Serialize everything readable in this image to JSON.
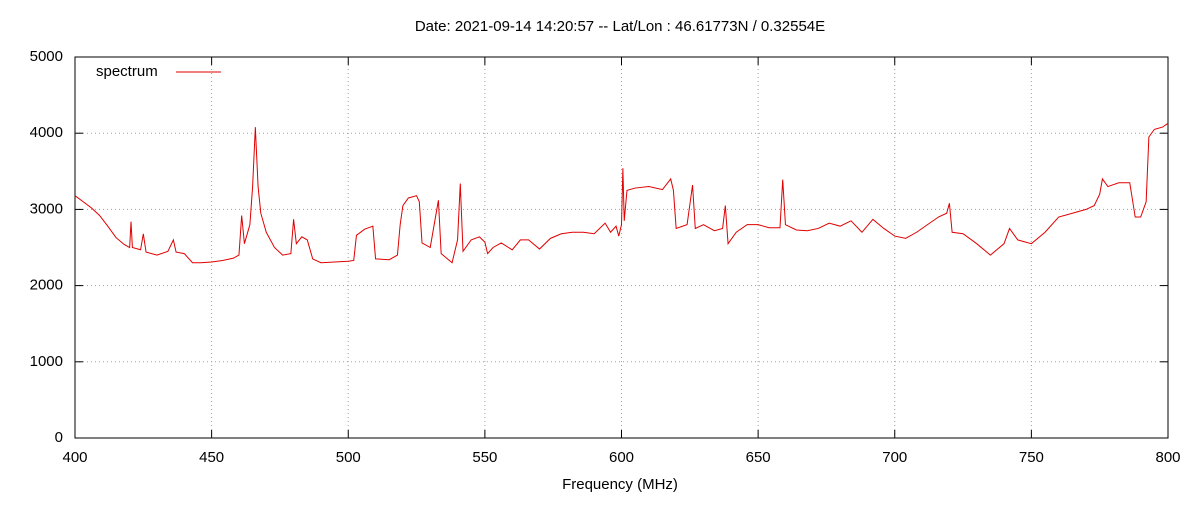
{
  "chart_data": {
    "type": "line",
    "title": "Date: 2021-09-14 14:20:57  --  Lat/Lon : 46.61773N / 0.32554E",
    "x_label": "Frequency (MHz)",
    "xlim": [
      400,
      800
    ],
    "xticks": [
      400,
      450,
      500,
      550,
      600,
      650,
      700,
      750,
      800
    ],
    "ylim": [
      0,
      5000
    ],
    "yticks": [
      0,
      1000,
      2000,
      3000,
      4000,
      5000
    ],
    "grid": true,
    "legend": "top-left",
    "series": [
      {
        "name": "spectrum",
        "color": "#e00000",
        "x": [
          400,
          403,
          406,
          409,
          412,
          415,
          418,
          420,
          420.5,
          421,
          424,
          425,
          426,
          430,
          434,
          436,
          437,
          440,
          443,
          446,
          450,
          454,
          458,
          460,
          461,
          462,
          464,
          465,
          466,
          467,
          468,
          470,
          473,
          476,
          479,
          480,
          481,
          483,
          485,
          487,
          490,
          495,
          500,
          502,
          503,
          506,
          509,
          510,
          515,
          518,
          519,
          520,
          522,
          525,
          526,
          527,
          530,
          533,
          534,
          538,
          540,
          541,
          542,
          545,
          548,
          550,
          551,
          553,
          556,
          560,
          563,
          566,
          570,
          574,
          578,
          582,
          586,
          590,
          594,
          596,
          598,
          599,
          600,
          600.5,
          601,
          602,
          605,
          610,
          615,
          618,
          619,
          620,
          624,
          626,
          627,
          630,
          634,
          637,
          638,
          639,
          642,
          646,
          650,
          654,
          658,
          659,
          660,
          664,
          668,
          672,
          676,
          680,
          684,
          688,
          692,
          696,
          700,
          704,
          708,
          712,
          716,
          719,
          720,
          721,
          725,
          730,
          735,
          740,
          742,
          745,
          750,
          755,
          760,
          765,
          770,
          773,
          775,
          776,
          778,
          782,
          786,
          788,
          790,
          792,
          793,
          795,
          798,
          800
        ],
        "values": [
          3180,
          3100,
          3020,
          2920,
          2780,
          2630,
          2540,
          2500,
          2840,
          2500,
          2470,
          2680,
          2440,
          2400,
          2450,
          2600,
          2440,
          2420,
          2300,
          2300,
          2310,
          2330,
          2360,
          2400,
          2920,
          2550,
          2800,
          3300,
          4080,
          3300,
          2950,
          2700,
          2500,
          2400,
          2420,
          2870,
          2550,
          2640,
          2600,
          2350,
          2300,
          2310,
          2320,
          2330,
          2660,
          2740,
          2780,
          2350,
          2340,
          2400,
          2800,
          3050,
          3150,
          3180,
          3100,
          2560,
          2500,
          3120,
          2420,
          2300,
          2600,
          3340,
          2450,
          2600,
          2640,
          2570,
          2420,
          2500,
          2560,
          2470,
          2600,
          2600,
          2480,
          2620,
          2680,
          2700,
          2700,
          2680,
          2820,
          2700,
          2780,
          2650,
          2800,
          3540,
          2850,
          3250,
          3280,
          3300,
          3260,
          3400,
          3250,
          2750,
          2800,
          3320,
          2750,
          2800,
          2720,
          2750,
          3050,
          2550,
          2700,
          2800,
          2800,
          2760,
          2760,
          3390,
          2800,
          2730,
          2720,
          2750,
          2820,
          2780,
          2850,
          2700,
          2870,
          2750,
          2650,
          2620,
          2700,
          2800,
          2900,
          2950,
          3080,
          2700,
          2680,
          2550,
          2400,
          2550,
          2750,
          2600,
          2550,
          2700,
          2900,
          2950,
          3000,
          3050,
          3200,
          3400,
          3300,
          3350,
          3350,
          2900,
          2900,
          3100,
          3950,
          4050,
          4080,
          4130
        ]
      }
    ]
  }
}
